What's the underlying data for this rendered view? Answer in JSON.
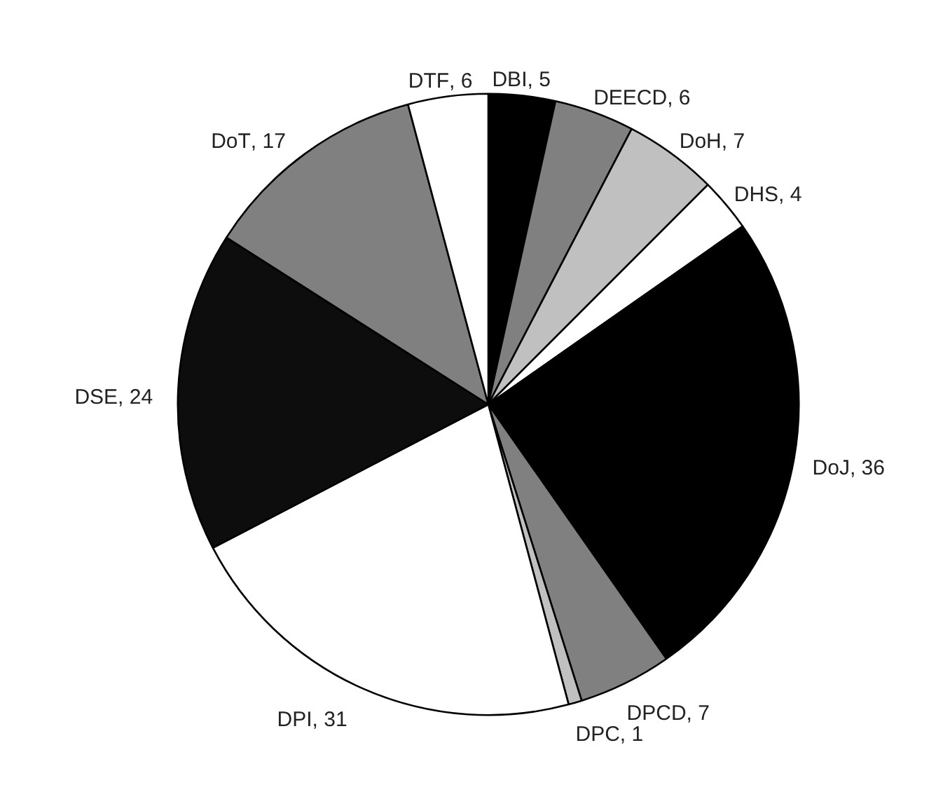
{
  "chart_data": {
    "type": "pie",
    "categories": [
      "DBI",
      "DEECD",
      "DoH",
      "DHS",
      "DoJ",
      "DPCD",
      "DPC",
      "DPI",
      "DSE",
      "DoT",
      "DTF"
    ],
    "values": [
      5,
      6,
      7,
      4,
      36,
      7,
      1,
      31,
      24,
      17,
      6
    ],
    "value_labels": [
      ", 5",
      ", 6",
      ", 7",
      ", 4",
      ", 36",
      ", 7",
      ", 1",
      ", 31",
      ", 24",
      ", 17",
      ", 6"
    ],
    "colors": [
      "#000000",
      "#808080",
      "#c0c0c0",
      "#ffffff",
      "#000000",
      "#808080",
      "#c0c0c0",
      "#ffffff",
      "#0d0d0d",
      "#808080",
      "#ffffff"
    ]
  }
}
